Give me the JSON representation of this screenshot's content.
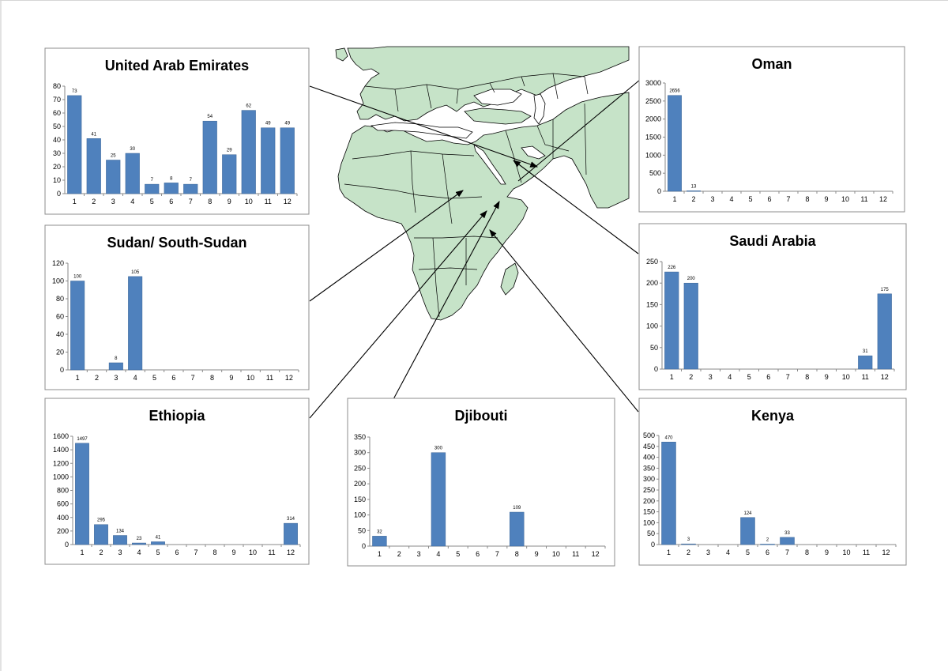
{
  "colors": {
    "bar": "#4f81bd",
    "bar_stroke": "#3b6596",
    "land": "#c6e3c8",
    "border": "#000000",
    "sea": "#ffffff"
  },
  "map": {
    "region": "Africa, Europe, Middle East and South Asia"
  },
  "chart_data": [
    {
      "id": "uae",
      "type": "bar",
      "title": "United Arab Emirates",
      "categories": [
        "1",
        "2",
        "3",
        "4",
        "5",
        "6",
        "7",
        "8",
        "9",
        "10",
        "11",
        "12"
      ],
      "values": [
        73,
        41,
        25,
        30,
        7,
        8,
        7,
        54,
        29,
        62,
        49,
        49
      ],
      "labels": [
        "73",
        "41",
        "25",
        "30",
        "7",
        "8",
        "7",
        "54",
        "29",
        "62",
        "49",
        "49"
      ],
      "ylim": [
        0,
        80
      ],
      "yticks": [
        0,
        10,
        20,
        30,
        40,
        50,
        60,
        70,
        80
      ],
      "xlabel": "",
      "ylabel": "",
      "grid": false,
      "legend": "none"
    },
    {
      "id": "oman",
      "type": "bar",
      "title": "Oman",
      "categories": [
        "1",
        "2",
        "3",
        "4",
        "5",
        "6",
        "7",
        "8",
        "9",
        "10",
        "11",
        "12"
      ],
      "values": [
        2656,
        13,
        0,
        0,
        0,
        0,
        0,
        0,
        0,
        0,
        0,
        0
      ],
      "labels": [
        "2656",
        "13",
        "",
        "",
        "",
        "",
        "",
        "",
        "",
        "",
        "",
        ""
      ],
      "ylim": [
        0,
        3000
      ],
      "yticks": [
        0,
        500,
        1000,
        1500,
        2000,
        2500,
        3000
      ],
      "xlabel": "",
      "ylabel": "",
      "grid": false,
      "legend": "none"
    },
    {
      "id": "sudan",
      "type": "bar",
      "title": "Sudan/ South-Sudan",
      "categories": [
        "1",
        "2",
        "3",
        "4",
        "5",
        "6",
        "7",
        "8",
        "9",
        "10",
        "11",
        "12"
      ],
      "values": [
        100,
        0,
        8,
        105,
        0,
        0,
        0,
        0,
        0,
        0,
        0,
        0
      ],
      "labels": [
        "100",
        "",
        "8",
        "105",
        "",
        "",
        "",
        "",
        "",
        "",
        "",
        ""
      ],
      "ylim": [
        0,
        120
      ],
      "yticks": [
        0,
        20,
        40,
        60,
        80,
        100,
        120
      ],
      "xlabel": "",
      "ylabel": "",
      "grid": false,
      "legend": "none"
    },
    {
      "id": "saudi",
      "type": "bar",
      "title": "Saudi Arabia",
      "categories": [
        "1",
        "2",
        "3",
        "4",
        "5",
        "6",
        "7",
        "8",
        "9",
        "10",
        "11",
        "12"
      ],
      "values": [
        226,
        200,
        0,
        0,
        0,
        0,
        0,
        0,
        0,
        0,
        31,
        175
      ],
      "labels": [
        "226",
        "200",
        "",
        "",
        "",
        "",
        "",
        "",
        "",
        "",
        "31",
        "175"
      ],
      "ylim": [
        0,
        250
      ],
      "yticks": [
        0,
        50,
        100,
        150,
        200,
        250
      ],
      "xlabel": "",
      "ylabel": "",
      "grid": false,
      "legend": "none"
    },
    {
      "id": "ethiopia",
      "type": "bar",
      "title": "Ethiopia",
      "categories": [
        "1",
        "2",
        "3",
        "4",
        "5",
        "6",
        "7",
        "8",
        "9",
        "10",
        "11",
        "12"
      ],
      "values": [
        1497,
        295,
        134,
        23,
        41,
        0,
        0,
        0,
        0,
        0,
        0,
        314
      ],
      "labels": [
        "1497",
        "295",
        "134",
        "23",
        "41",
        "",
        "",
        "",
        "",
        "",
        "",
        "314"
      ],
      "ylim": [
        0,
        1600
      ],
      "yticks": [
        0,
        200,
        400,
        600,
        800,
        1000,
        1200,
        1400,
        1600
      ],
      "xlabel": "",
      "ylabel": "",
      "grid": false,
      "legend": "none"
    },
    {
      "id": "djibouti",
      "type": "bar",
      "title": "Djibouti",
      "categories": [
        "1",
        "2",
        "3",
        "4",
        "5",
        "6",
        "7",
        "8",
        "9",
        "10",
        "11",
        "12"
      ],
      "values": [
        32,
        0,
        0,
        300,
        0,
        0,
        0,
        109,
        0,
        0,
        0,
        0
      ],
      "labels": [
        "32",
        "",
        "",
        "300",
        "",
        "",
        "",
        "109",
        "",
        "",
        "",
        ""
      ],
      "ylim": [
        0,
        350
      ],
      "yticks": [
        0,
        50,
        100,
        150,
        200,
        250,
        300,
        350
      ],
      "xlabel": "",
      "ylabel": "",
      "grid": false,
      "legend": "none"
    },
    {
      "id": "kenya",
      "type": "bar",
      "title": "Kenya",
      "categories": [
        "1",
        "2",
        "3",
        "4",
        "5",
        "6",
        "7",
        "8",
        "9",
        "10",
        "11",
        "12"
      ],
      "values": [
        470,
        3,
        0,
        0,
        124,
        2,
        33,
        0,
        0,
        0,
        0,
        0
      ],
      "labels": [
        "470",
        "3",
        "",
        "",
        "124",
        "2",
        "33",
        "",
        "",
        "",
        "",
        ""
      ],
      "ylim": [
        0,
        500
      ],
      "yticks": [
        0,
        50,
        100,
        150,
        200,
        250,
        300,
        350,
        400,
        450,
        500
      ],
      "xlabel": "",
      "ylabel": "",
      "grid": false,
      "legend": "none"
    }
  ]
}
